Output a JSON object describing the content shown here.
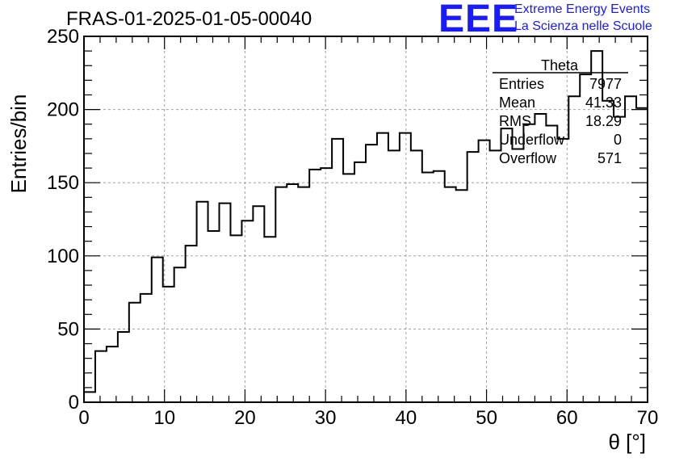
{
  "header": {
    "title": "FRAS-01-2025-01-05-00040",
    "logo_text": "EEE",
    "logo_line1": "Extreme Energy Events",
    "logo_line2": "La Scienza nelle Scuole"
  },
  "colors": {
    "line": "#000000",
    "grid": "#a0a0a0",
    "logo": "#1a1aff",
    "background": "#ffffff"
  },
  "chart_data": {
    "type": "bar",
    "histogram": "step",
    "title": "FRAS-01-2025-01-05-00040",
    "xlabel": "θ [°]",
    "ylabel": "Entries/bin",
    "xlim": [
      0,
      70
    ],
    "ylim": [
      0,
      250
    ],
    "grid": true,
    "bin_width": 1.4,
    "x_ticks": [
      0,
      10,
      20,
      30,
      40,
      50,
      60,
      70
    ],
    "y_ticks": [
      0,
      50,
      100,
      150,
      200,
      250
    ],
    "values": [
      7,
      35,
      38,
      48,
      68,
      74,
      99,
      79,
      92,
      107,
      137,
      117,
      136,
      114,
      124,
      134,
      113,
      147,
      149,
      147,
      159,
      160,
      180,
      156,
      164,
      176,
      184,
      172,
      184,
      172,
      157,
      158,
      147,
      145,
      171,
      179,
      172,
      187,
      173,
      190,
      197,
      189,
      180,
      209,
      224,
      240,
      206,
      195,
      209,
      201
    ],
    "stats": {
      "name": "Theta",
      "rows": [
        {
          "label": "Entries",
          "value": "7977"
        },
        {
          "label": "Mean",
          "value": "41.33"
        },
        {
          "label": "RMS",
          "value": "18.29"
        },
        {
          "label": "Underflow",
          "value": "0"
        },
        {
          "label": "Overflow",
          "value": "571"
        }
      ]
    }
  }
}
